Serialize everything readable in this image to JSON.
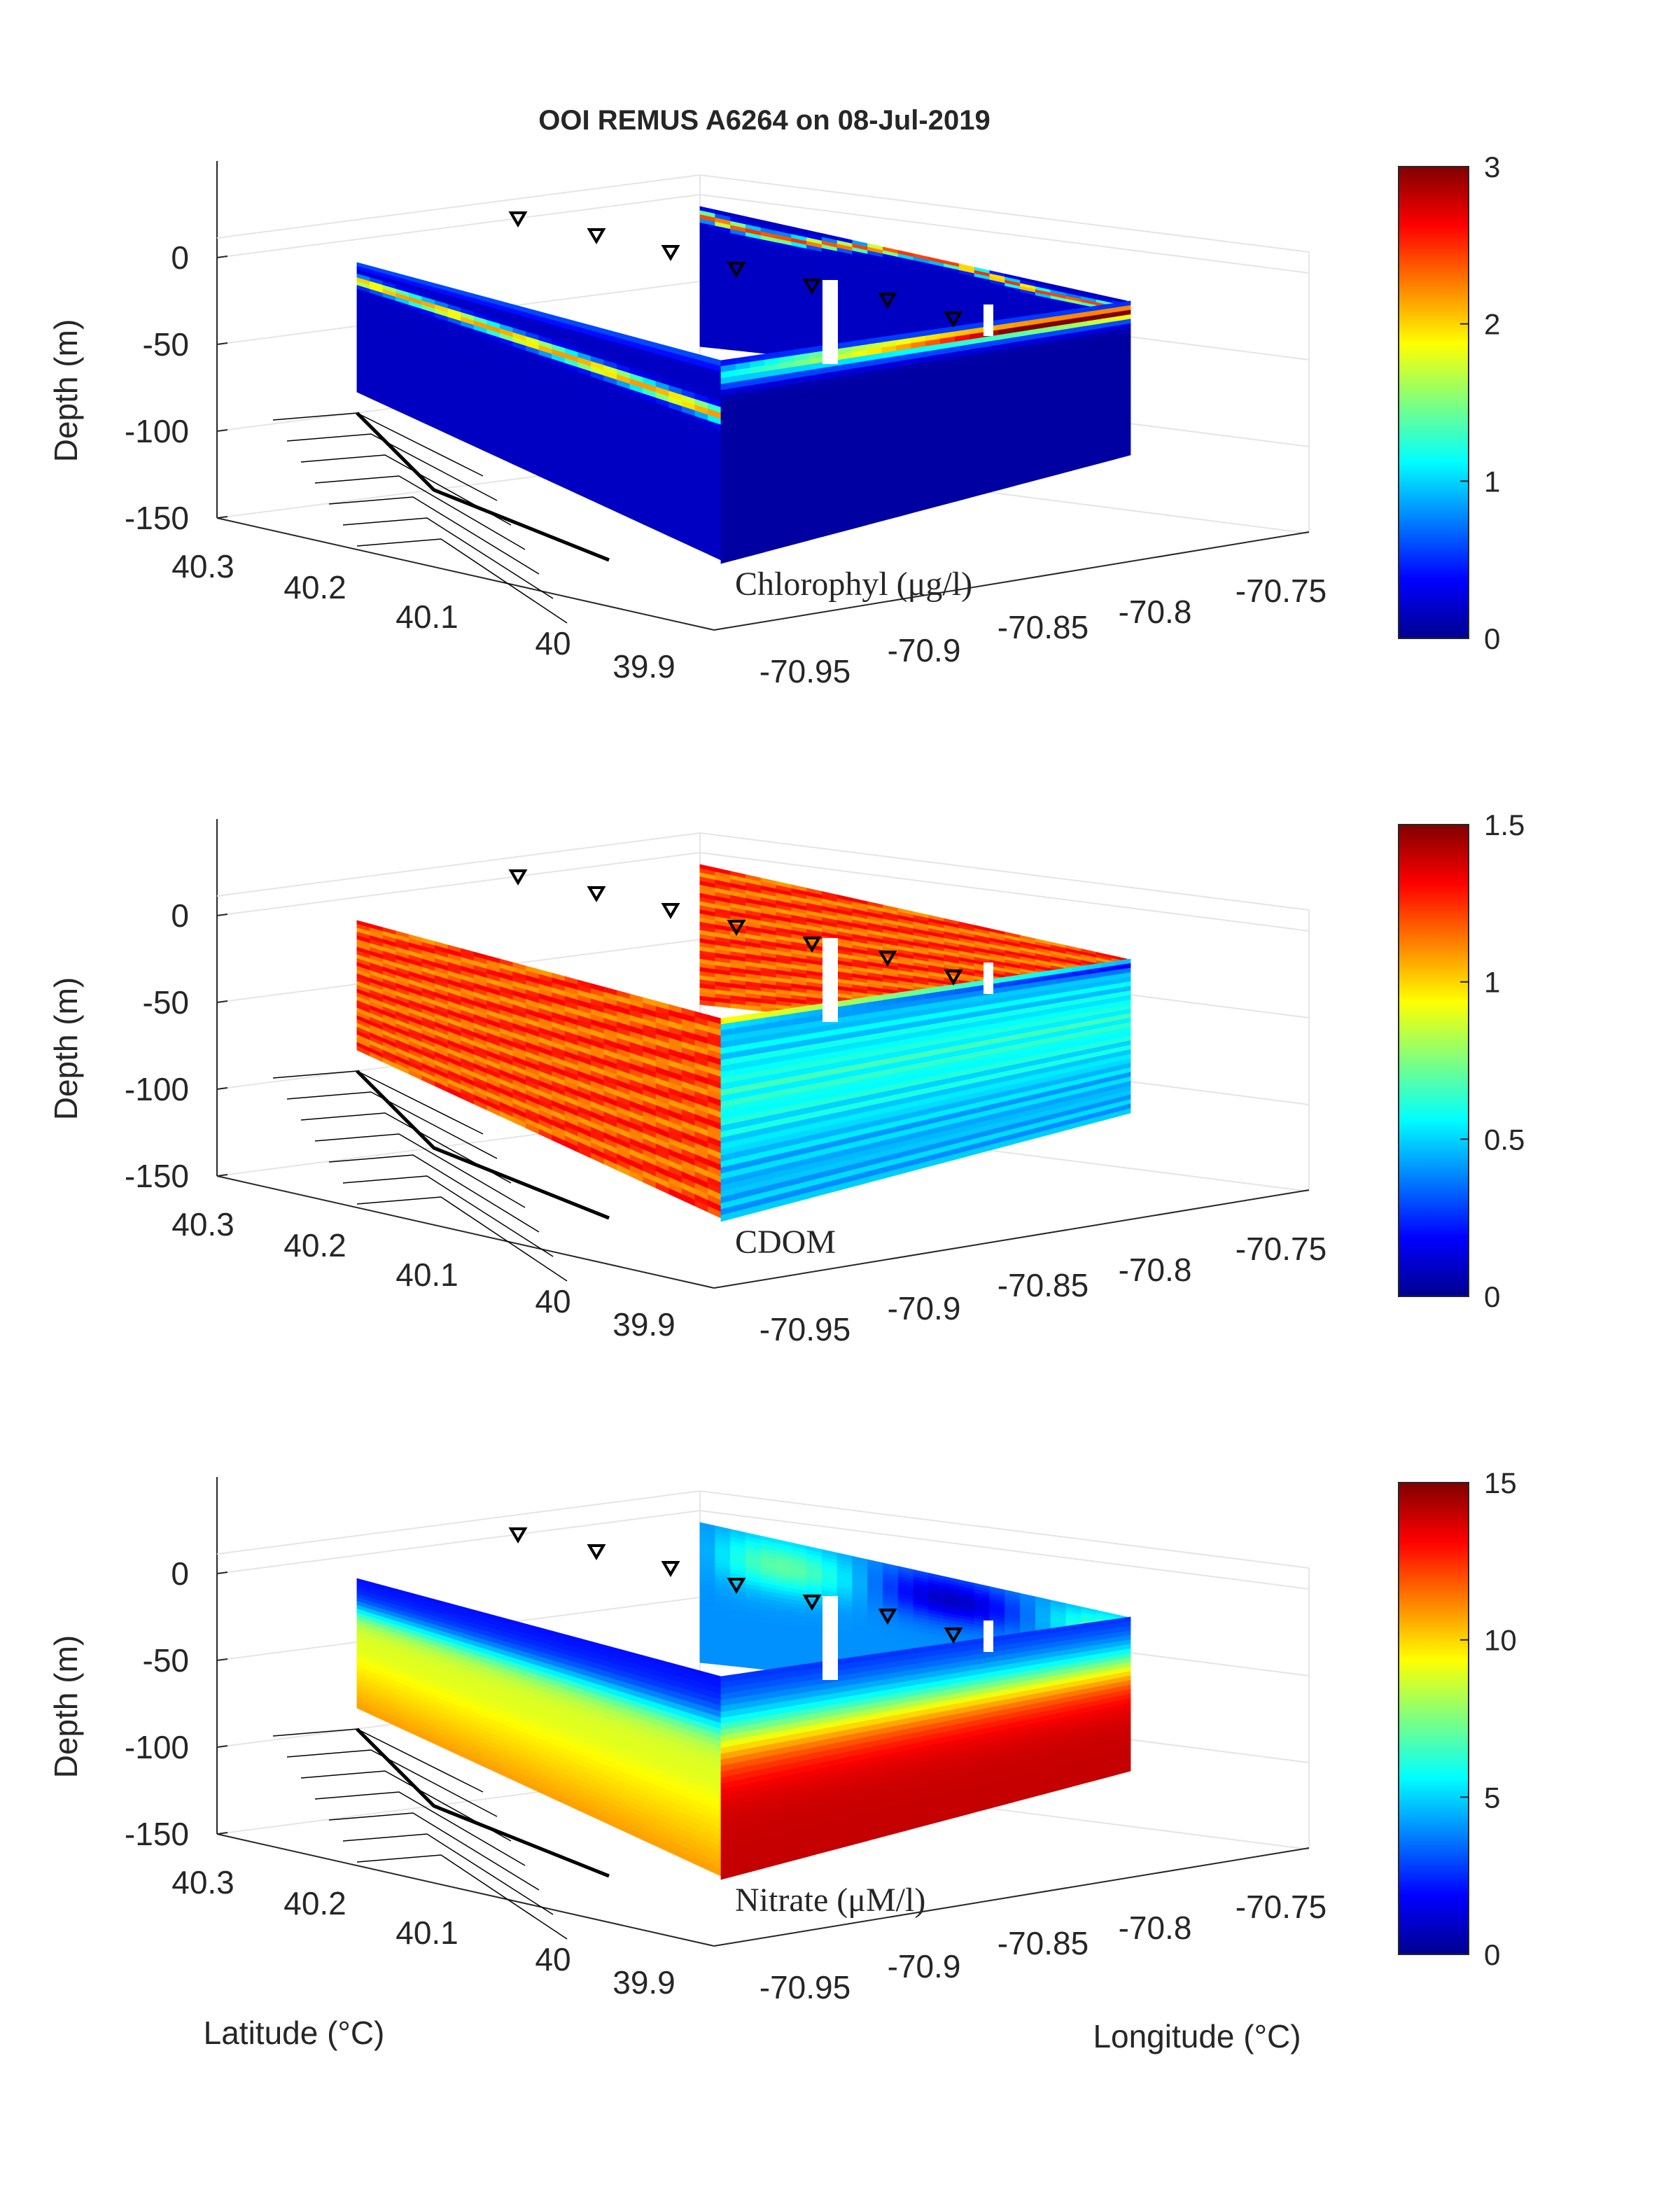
{
  "figure": {
    "title": "OOI REMUS A6264 on 08-Jul-2019",
    "latitude_label": "Latitude (°C)",
    "longitude_label": "Longitude (°C)"
  },
  "chart_data": [
    {
      "type": "heatmap",
      "variable": "Chlorophyl (μg/l)",
      "zlabel": "Depth (m)",
      "depth_ticks": [
        "0",
        "-50",
        "-100",
        "-150"
      ],
      "lat_ticks": [
        "40.3",
        "40.2",
        "40.1",
        "40",
        "39.9"
      ],
      "lon_ticks": [
        "-70.95",
        "-70.9",
        "-70.85",
        "-70.8",
        "-70.75"
      ],
      "colorbar_ticks": [
        "0",
        "1",
        "2",
        "3"
      ],
      "clim": [
        0,
        3
      ],
      "colormap": "jet",
      "profile": {
        "background": 0.2,
        "surface_layer": 0.6,
        "chl_max_band": 2.6,
        "deep": 0.1
      }
    },
    {
      "type": "heatmap",
      "variable": "CDOM",
      "zlabel": "Depth (m)",
      "depth_ticks": [
        "0",
        "-50",
        "-100",
        "-150"
      ],
      "lat_ticks": [
        "40.3",
        "40.2",
        "40.1",
        "40",
        "39.9"
      ],
      "lon_ticks": [
        "-70.95",
        "-70.9",
        "-70.85",
        "-70.8",
        "-70.75"
      ],
      "colorbar_ticks": [
        "0",
        "0.5",
        "1",
        "1.5"
      ],
      "clim": [
        0,
        1.5
      ],
      "colormap": "jet",
      "profile": {
        "western_section": 1.2,
        "eastern_surface": 1.25,
        "eastern_subsurface": 0.55,
        "eastern_deep": 0.45
      }
    },
    {
      "type": "heatmap",
      "variable": "Nitrate (μM/l)",
      "zlabel": "Depth (m)",
      "depth_ticks": [
        "0",
        "-50",
        "-100",
        "-150"
      ],
      "lat_ticks": [
        "40.3",
        "40.2",
        "40.1",
        "40",
        "39.9"
      ],
      "lon_ticks": [
        "-70.95",
        "-70.9",
        "-70.85",
        "-70.8",
        "-70.75"
      ],
      "colorbar_ticks": [
        "0",
        "5",
        "10",
        "15"
      ],
      "clim": [
        0,
        15
      ],
      "colormap": "jet",
      "profile": {
        "surface": 2,
        "nitracline_mid": 9,
        "deep": 14
      }
    }
  ]
}
